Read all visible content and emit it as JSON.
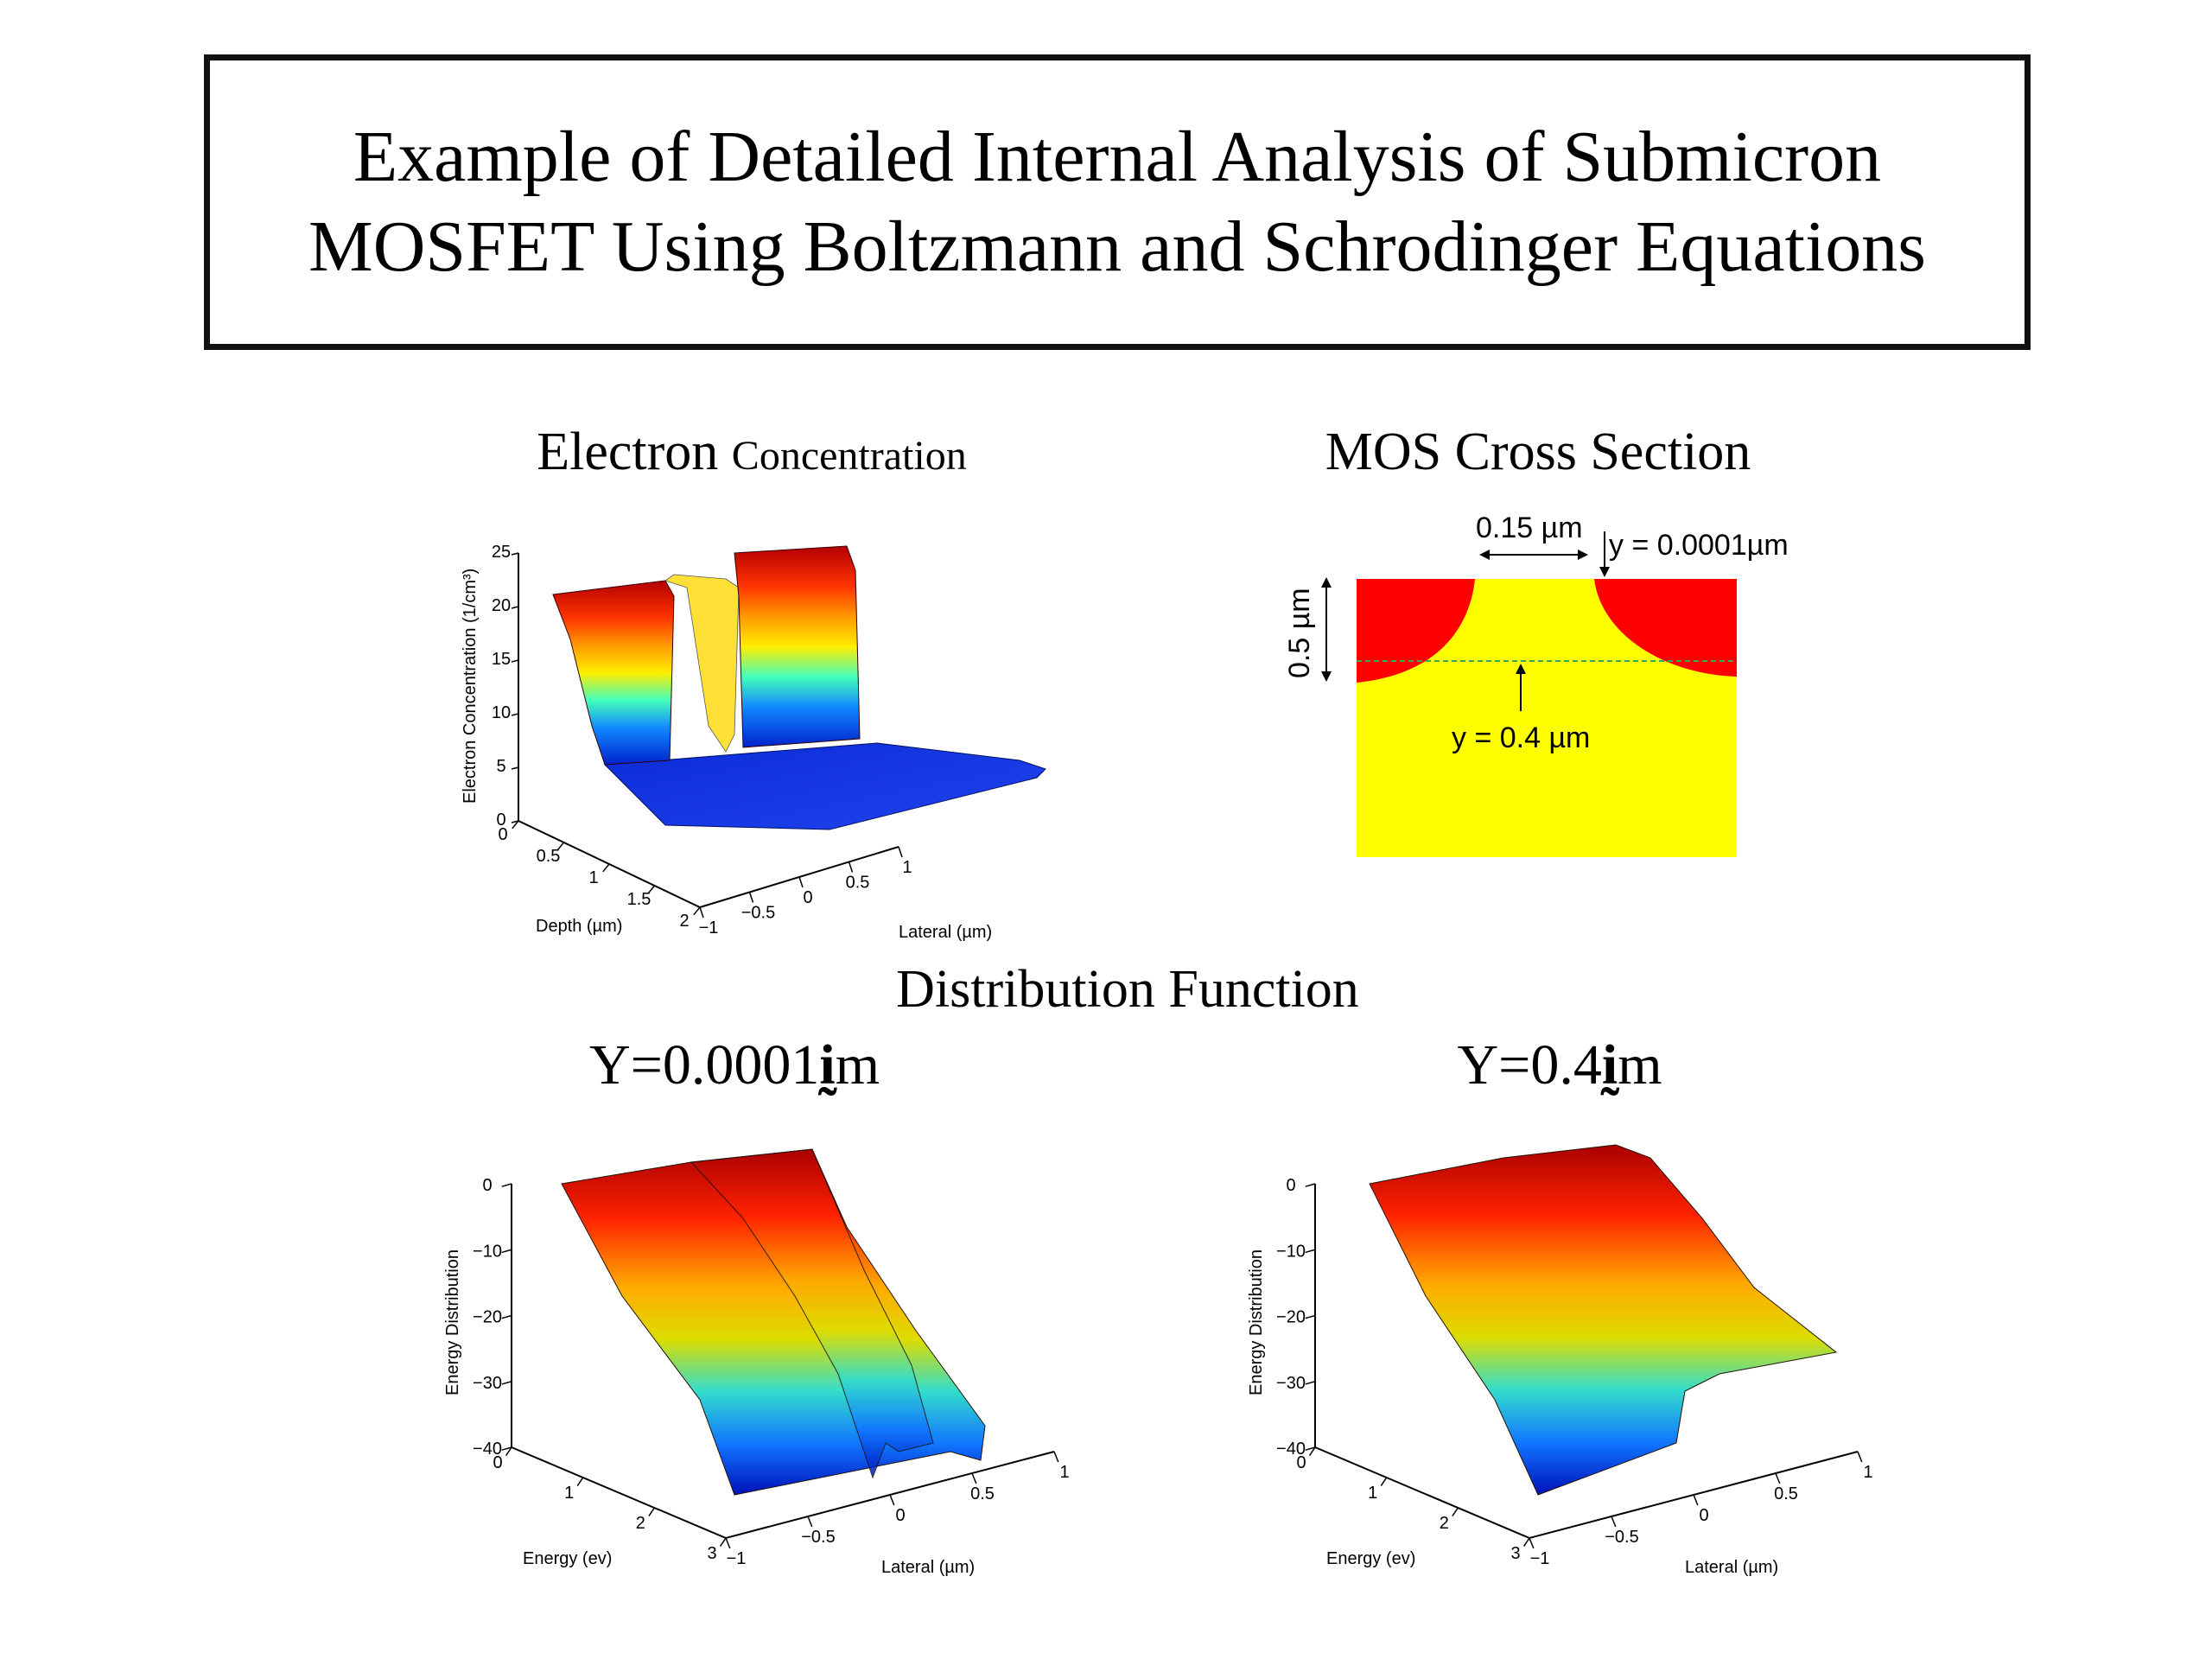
{
  "slide": {
    "title_line1": "Example of Detailed Internal Analysis of Submicron",
    "title_line2": "MOSFET Using Boltzmann and Schrodinger Equations"
  },
  "captions": {
    "electron_word": "Electron",
    "concentration_word": "Concentration",
    "mos_cross_section": "MOS Cross Section",
    "distribution_function": "Distribution Function",
    "y_top": "Y=0.0001",
    "y_bottom": "Y=0.4",
    "unit_m": "m"
  },
  "mos": {
    "width_label": "0.15 µm",
    "y_top_label": "y = 0.0001µm",
    "depth_label": "0.5 µm",
    "y_mid_label": "y = 0.4 µm",
    "colors": {
      "substrate": "#ffff00",
      "junction": "#ff0000",
      "cut_line": "#33aa55"
    }
  },
  "chart_data": [
    {
      "type": "surface3d",
      "xlabel": "Depth (µm)",
      "ylabel": "Lateral (µm)",
      "zlabel": "Electron Concentration (1/cm³)",
      "x_ticks": [
        "0",
        "0.5",
        "1",
        "1.5",
        "2"
      ],
      "y_ticks": [
        "−1",
        "−0.5",
        "0",
        "0.5",
        "1"
      ],
      "z_ticks": [
        "0",
        "5",
        "10",
        "15",
        "20",
        "25"
      ],
      "xlim": [
        0,
        2
      ],
      "ylim": [
        -1,
        1
      ],
      "zlim": [
        0,
        25
      ]
    },
    {
      "type": "surface3d",
      "xlabel": "Energy (ev)",
      "ylabel": "Lateral (µm)",
      "zlabel": "Energy Distribution",
      "x_ticks": [
        "0",
        "1",
        "2",
        "3"
      ],
      "y_ticks": [
        "−1",
        "−0.5",
        "0",
        "0.5",
        "1"
      ],
      "z_ticks": [
        "0",
        "−10",
        "−20",
        "−30",
        "−40"
      ],
      "xlim": [
        0,
        3
      ],
      "ylim": [
        -1,
        1
      ],
      "zlim": [
        -40,
        0
      ]
    },
    {
      "type": "surface3d",
      "xlabel": "Energy (ev)",
      "ylabel": "Lateral (µm)",
      "zlabel": "Energy Distribution",
      "x_ticks": [
        "0",
        "1",
        "2",
        "3"
      ],
      "y_ticks": [
        "−1",
        "−0.5",
        "0",
        "0.5",
        "1"
      ],
      "z_ticks": [
        "0",
        "−10",
        "−20",
        "−30",
        "−40"
      ],
      "xlim": [
        0,
        3
      ],
      "ylim": [
        -1,
        1
      ],
      "zlim": [
        -40,
        0
      ]
    }
  ]
}
